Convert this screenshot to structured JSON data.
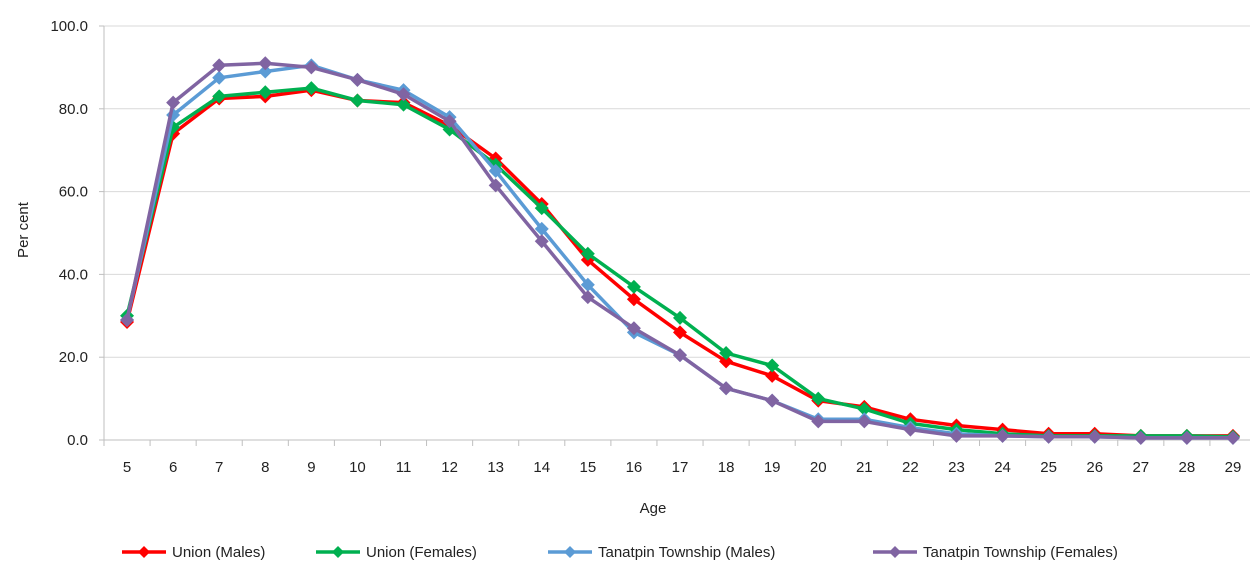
{
  "chart_data": {
    "type": "line",
    "title": "",
    "xlabel": "Age",
    "ylabel": "Per cent",
    "x": [
      5,
      6,
      7,
      8,
      9,
      10,
      11,
      12,
      13,
      14,
      15,
      16,
      17,
      18,
      19,
      20,
      21,
      22,
      23,
      24,
      25,
      26,
      27,
      28,
      29
    ],
    "ylim": [
      0,
      100
    ],
    "yticks": [
      "0.0",
      "20.0",
      "40.0",
      "60.0",
      "80.0",
      "100.0"
    ],
    "grid": "horizontal",
    "legend_position": "bottom",
    "series": [
      {
        "name": "Union (Males)",
        "color": "#ff0000",
        "values": [
          28.5,
          74.0,
          82.5,
          83.0,
          84.5,
          82.0,
          81.5,
          76.0,
          68.0,
          57.0,
          43.5,
          34.0,
          26.0,
          19.0,
          15.5,
          9.5,
          8.0,
          5.0,
          3.5,
          2.5,
          1.5,
          1.5,
          1.0,
          1.0,
          1.0
        ]
      },
      {
        "name": "Union (Females)",
        "color": "#00b050",
        "values": [
          30.0,
          75.5,
          83.0,
          84.0,
          85.0,
          82.0,
          81.0,
          75.0,
          66.5,
          56.0,
          45.0,
          37.0,
          29.5,
          21.0,
          18.0,
          10.0,
          7.5,
          4.0,
          2.5,
          1.5,
          1.0,
          1.0,
          1.0,
          1.0,
          0.8
        ]
      },
      {
        "name": "Tanatpin Township (Males)",
        "color": "#5b9bd5",
        "values": [
          29.0,
          78.5,
          87.5,
          89.0,
          90.5,
          87.0,
          84.5,
          78.0,
          65.0,
          51.0,
          37.5,
          26.0,
          20.5,
          12.5,
          9.5,
          5.0,
          5.0,
          3.0,
          1.5,
          1.0,
          0.8,
          0.8,
          0.5,
          0.5,
          0.5
        ]
      },
      {
        "name": "Tanatpin Township (Females)",
        "color": "#8064a2",
        "values": [
          29.0,
          81.5,
          90.5,
          91.0,
          90.0,
          87.0,
          83.5,
          77.0,
          61.5,
          48.0,
          34.5,
          27.0,
          20.5,
          12.5,
          9.5,
          4.5,
          4.5,
          2.5,
          1.0,
          1.0,
          0.8,
          0.8,
          0.5,
          0.5,
          0.5
        ]
      }
    ]
  }
}
